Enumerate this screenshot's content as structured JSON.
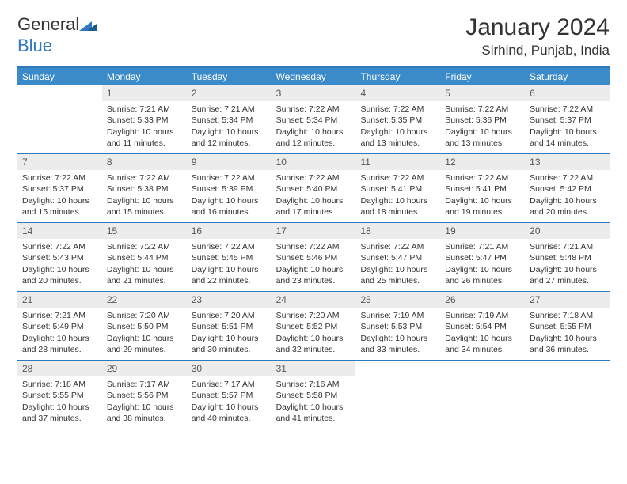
{
  "brand": {
    "name_first": "General",
    "name_second": "Blue"
  },
  "title": "January 2024",
  "location": "Sirhind, Punjab, India",
  "colors": {
    "header_bg": "#3b8bc9",
    "border": "#2f7abf",
    "daynum_bg": "#ececec",
    "text": "#333333"
  },
  "weekdays": [
    "Sunday",
    "Monday",
    "Tuesday",
    "Wednesday",
    "Thursday",
    "Friday",
    "Saturday"
  ],
  "weeks": [
    [
      {
        "n": "",
        "sr": "",
        "ss": "",
        "d1": "",
        "d2": ""
      },
      {
        "n": "1",
        "sr": "Sunrise: 7:21 AM",
        "ss": "Sunset: 5:33 PM",
        "d1": "Daylight: 10 hours",
        "d2": "and 11 minutes."
      },
      {
        "n": "2",
        "sr": "Sunrise: 7:21 AM",
        "ss": "Sunset: 5:34 PM",
        "d1": "Daylight: 10 hours",
        "d2": "and 12 minutes."
      },
      {
        "n": "3",
        "sr": "Sunrise: 7:22 AM",
        "ss": "Sunset: 5:34 PM",
        "d1": "Daylight: 10 hours",
        "d2": "and 12 minutes."
      },
      {
        "n": "4",
        "sr": "Sunrise: 7:22 AM",
        "ss": "Sunset: 5:35 PM",
        "d1": "Daylight: 10 hours",
        "d2": "and 13 minutes."
      },
      {
        "n": "5",
        "sr": "Sunrise: 7:22 AM",
        "ss": "Sunset: 5:36 PM",
        "d1": "Daylight: 10 hours",
        "d2": "and 13 minutes."
      },
      {
        "n": "6",
        "sr": "Sunrise: 7:22 AM",
        "ss": "Sunset: 5:37 PM",
        "d1": "Daylight: 10 hours",
        "d2": "and 14 minutes."
      }
    ],
    [
      {
        "n": "7",
        "sr": "Sunrise: 7:22 AM",
        "ss": "Sunset: 5:37 PM",
        "d1": "Daylight: 10 hours",
        "d2": "and 15 minutes."
      },
      {
        "n": "8",
        "sr": "Sunrise: 7:22 AM",
        "ss": "Sunset: 5:38 PM",
        "d1": "Daylight: 10 hours",
        "d2": "and 15 minutes."
      },
      {
        "n": "9",
        "sr": "Sunrise: 7:22 AM",
        "ss": "Sunset: 5:39 PM",
        "d1": "Daylight: 10 hours",
        "d2": "and 16 minutes."
      },
      {
        "n": "10",
        "sr": "Sunrise: 7:22 AM",
        "ss": "Sunset: 5:40 PM",
        "d1": "Daylight: 10 hours",
        "d2": "and 17 minutes."
      },
      {
        "n": "11",
        "sr": "Sunrise: 7:22 AM",
        "ss": "Sunset: 5:41 PM",
        "d1": "Daylight: 10 hours",
        "d2": "and 18 minutes."
      },
      {
        "n": "12",
        "sr": "Sunrise: 7:22 AM",
        "ss": "Sunset: 5:41 PM",
        "d1": "Daylight: 10 hours",
        "d2": "and 19 minutes."
      },
      {
        "n": "13",
        "sr": "Sunrise: 7:22 AM",
        "ss": "Sunset: 5:42 PM",
        "d1": "Daylight: 10 hours",
        "d2": "and 20 minutes."
      }
    ],
    [
      {
        "n": "14",
        "sr": "Sunrise: 7:22 AM",
        "ss": "Sunset: 5:43 PM",
        "d1": "Daylight: 10 hours",
        "d2": "and 20 minutes."
      },
      {
        "n": "15",
        "sr": "Sunrise: 7:22 AM",
        "ss": "Sunset: 5:44 PM",
        "d1": "Daylight: 10 hours",
        "d2": "and 21 minutes."
      },
      {
        "n": "16",
        "sr": "Sunrise: 7:22 AM",
        "ss": "Sunset: 5:45 PM",
        "d1": "Daylight: 10 hours",
        "d2": "and 22 minutes."
      },
      {
        "n": "17",
        "sr": "Sunrise: 7:22 AM",
        "ss": "Sunset: 5:46 PM",
        "d1": "Daylight: 10 hours",
        "d2": "and 23 minutes."
      },
      {
        "n": "18",
        "sr": "Sunrise: 7:22 AM",
        "ss": "Sunset: 5:47 PM",
        "d1": "Daylight: 10 hours",
        "d2": "and 25 minutes."
      },
      {
        "n": "19",
        "sr": "Sunrise: 7:21 AM",
        "ss": "Sunset: 5:47 PM",
        "d1": "Daylight: 10 hours",
        "d2": "and 26 minutes."
      },
      {
        "n": "20",
        "sr": "Sunrise: 7:21 AM",
        "ss": "Sunset: 5:48 PM",
        "d1": "Daylight: 10 hours",
        "d2": "and 27 minutes."
      }
    ],
    [
      {
        "n": "21",
        "sr": "Sunrise: 7:21 AM",
        "ss": "Sunset: 5:49 PM",
        "d1": "Daylight: 10 hours",
        "d2": "and 28 minutes."
      },
      {
        "n": "22",
        "sr": "Sunrise: 7:20 AM",
        "ss": "Sunset: 5:50 PM",
        "d1": "Daylight: 10 hours",
        "d2": "and 29 minutes."
      },
      {
        "n": "23",
        "sr": "Sunrise: 7:20 AM",
        "ss": "Sunset: 5:51 PM",
        "d1": "Daylight: 10 hours",
        "d2": "and 30 minutes."
      },
      {
        "n": "24",
        "sr": "Sunrise: 7:20 AM",
        "ss": "Sunset: 5:52 PM",
        "d1": "Daylight: 10 hours",
        "d2": "and 32 minutes."
      },
      {
        "n": "25",
        "sr": "Sunrise: 7:19 AM",
        "ss": "Sunset: 5:53 PM",
        "d1": "Daylight: 10 hours",
        "d2": "and 33 minutes."
      },
      {
        "n": "26",
        "sr": "Sunrise: 7:19 AM",
        "ss": "Sunset: 5:54 PM",
        "d1": "Daylight: 10 hours",
        "d2": "and 34 minutes."
      },
      {
        "n": "27",
        "sr": "Sunrise: 7:18 AM",
        "ss": "Sunset: 5:55 PM",
        "d1": "Daylight: 10 hours",
        "d2": "and 36 minutes."
      }
    ],
    [
      {
        "n": "28",
        "sr": "Sunrise: 7:18 AM",
        "ss": "Sunset: 5:55 PM",
        "d1": "Daylight: 10 hours",
        "d2": "and 37 minutes."
      },
      {
        "n": "29",
        "sr": "Sunrise: 7:17 AM",
        "ss": "Sunset: 5:56 PM",
        "d1": "Daylight: 10 hours",
        "d2": "and 38 minutes."
      },
      {
        "n": "30",
        "sr": "Sunrise: 7:17 AM",
        "ss": "Sunset: 5:57 PM",
        "d1": "Daylight: 10 hours",
        "d2": "and 40 minutes."
      },
      {
        "n": "31",
        "sr": "Sunrise: 7:16 AM",
        "ss": "Sunset: 5:58 PM",
        "d1": "Daylight: 10 hours",
        "d2": "and 41 minutes."
      },
      {
        "n": "",
        "sr": "",
        "ss": "",
        "d1": "",
        "d2": ""
      },
      {
        "n": "",
        "sr": "",
        "ss": "",
        "d1": "",
        "d2": ""
      },
      {
        "n": "",
        "sr": "",
        "ss": "",
        "d1": "",
        "d2": ""
      }
    ]
  ]
}
